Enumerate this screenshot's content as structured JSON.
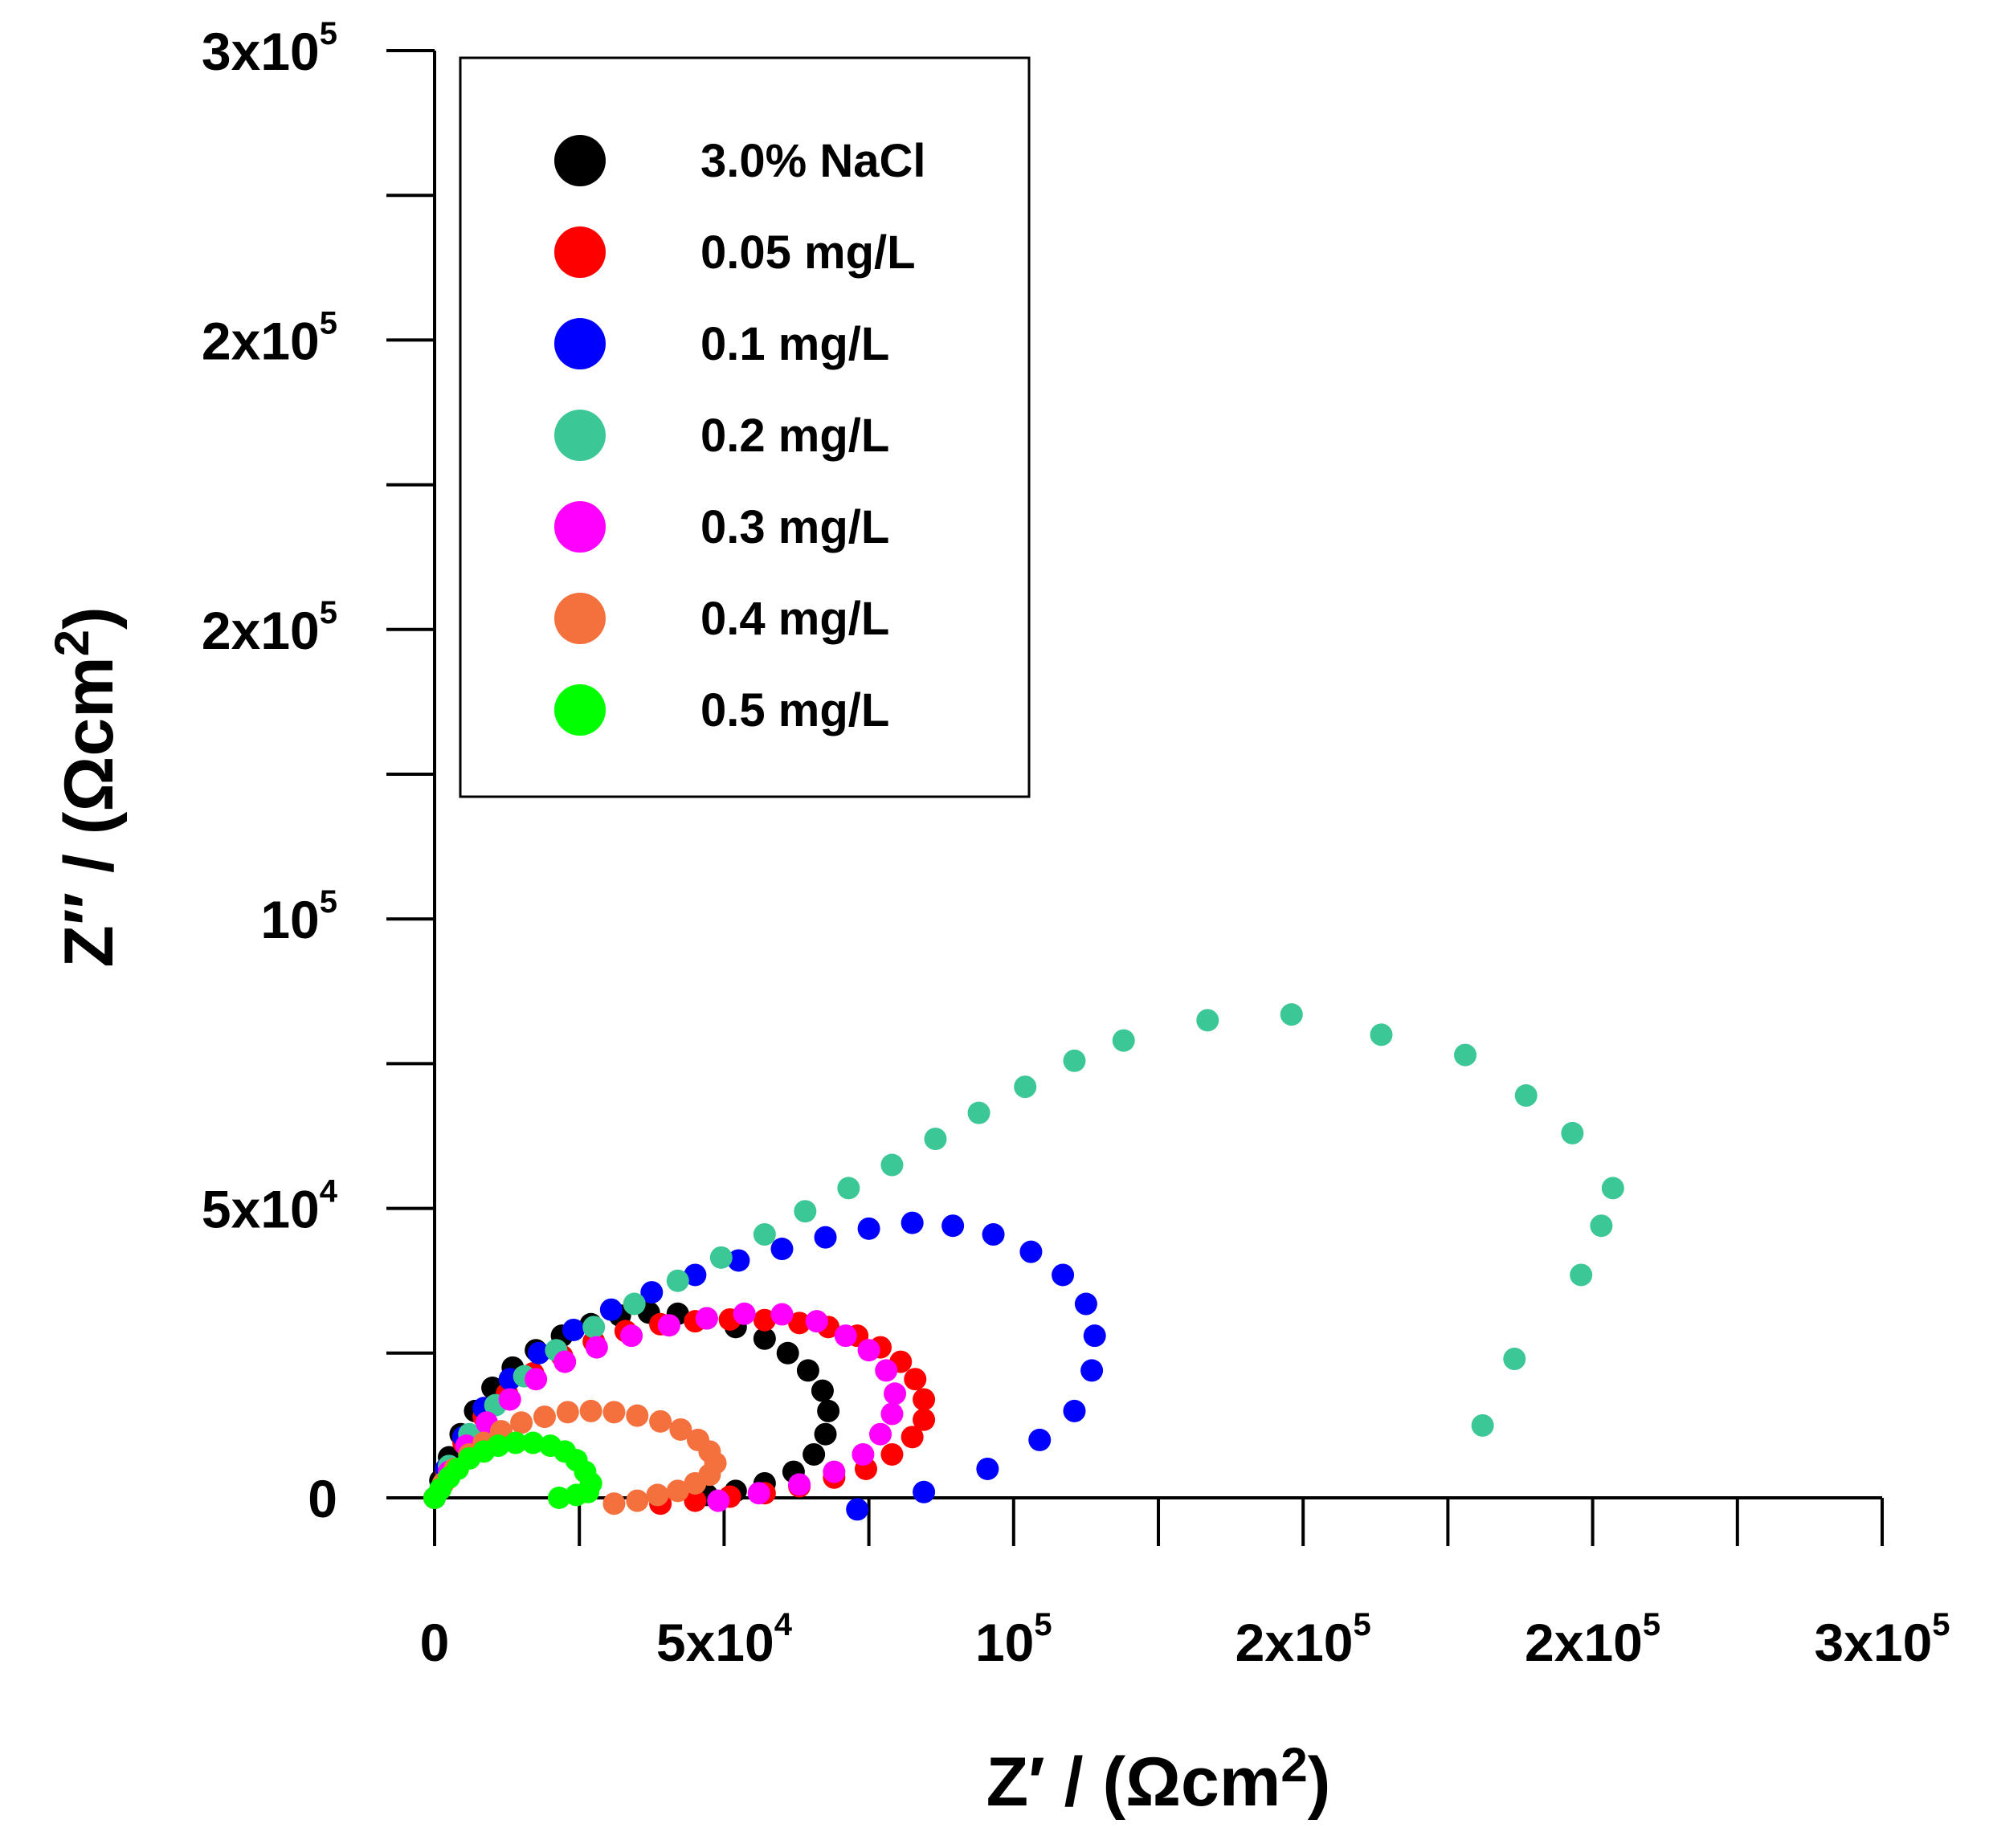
{
  "chart_data": {
    "type": "scatter",
    "title": "",
    "xlabel": "Z' / (Ωcm2)",
    "ylabel": "Z'' / (Ωcm2)",
    "xlabel_parts": {
      "main": "Z′ / (Ωcm",
      "sup": "2",
      "close": ")"
    },
    "ylabel_parts": {
      "main": "Z″ / (Ωcm",
      "sup": "2",
      "close": ")"
    },
    "xlim": [
      0,
      250000
    ],
    "ylim": [
      0,
      250000
    ],
    "x_ticks": [
      {
        "value": 0,
        "base": "0",
        "exp": ""
      },
      {
        "value": 50000,
        "base": "5x10",
        "exp": "4"
      },
      {
        "value": 100000,
        "base": "10",
        "exp": "5"
      },
      {
        "value": 150000,
        "base": "2x10",
        "exp": "5"
      },
      {
        "value": 200000,
        "base": "2x10",
        "exp": "5"
      },
      {
        "value": 250000,
        "base": "3x10",
        "exp": "5"
      }
    ],
    "y_ticks": [
      {
        "value": 0,
        "base": "0",
        "exp": ""
      },
      {
        "value": 50000,
        "base": "5x10",
        "exp": "4"
      },
      {
        "value": 100000,
        "base": "10",
        "exp": "5"
      },
      {
        "value": 150000,
        "base": "2x10",
        "exp": "5"
      },
      {
        "value": 200000,
        "base": "2x10",
        "exp": "5"
      },
      {
        "value": 250000,
        "base": "3x10",
        "exp": "5"
      }
    ],
    "legend_position": "top-left",
    "series": [
      {
        "name": "3.0% NaCl",
        "color": "#000000",
        "points": [
          [
            0,
            0
          ],
          [
            1000,
            3000
          ],
          [
            2500,
            7000
          ],
          [
            4500,
            11000
          ],
          [
            7000,
            15000
          ],
          [
            10000,
            19000
          ],
          [
            13500,
            22500
          ],
          [
            17500,
            25500
          ],
          [
            22000,
            28000
          ],
          [
            27000,
            30000
          ],
          [
            32000,
            31500
          ],
          [
            37000,
            32000
          ],
          [
            42000,
            31800
          ],
          [
            47000,
            31000
          ],
          [
            52000,
            29500
          ],
          [
            57000,
            27500
          ],
          [
            61000,
            25000
          ],
          [
            64500,
            22000
          ],
          [
            67000,
            18500
          ],
          [
            68000,
            15000
          ],
          [
            67500,
            11000
          ],
          [
            65500,
            7500
          ],
          [
            62000,
            4500
          ],
          [
            57000,
            2500
          ],
          [
            52000,
            1200
          ],
          [
            47000,
            500
          ]
        ]
      },
      {
        "name": "0.05 mg/L",
        "color": "#ff0000",
        "points": [
          [
            0,
            0
          ],
          [
            2000,
            4500
          ],
          [
            5000,
            9500
          ],
          [
            8500,
            14000
          ],
          [
            12500,
            18000
          ],
          [
            17000,
            21500
          ],
          [
            22000,
            24500
          ],
          [
            27500,
            27000
          ],
          [
            33000,
            28800
          ],
          [
            39000,
            30000
          ],
          [
            45000,
            30500
          ],
          [
            51000,
            30800
          ],
          [
            57000,
            30700
          ],
          [
            63000,
            30200
          ],
          [
            68000,
            29500
          ],
          [
            73000,
            28000
          ],
          [
            77000,
            26000
          ],
          [
            80500,
            23500
          ],
          [
            83000,
            20500
          ],
          [
            84500,
            17000
          ],
          [
            84500,
            13500
          ],
          [
            82500,
            10500
          ],
          [
            79000,
            7500
          ],
          [
            74500,
            5000
          ],
          [
            69000,
            3500
          ],
          [
            63000,
            2000
          ],
          [
            57000,
            800
          ],
          [
            51000,
            200
          ],
          [
            45000,
            -500
          ],
          [
            39000,
            -1000
          ]
        ]
      },
      {
        "name": "0.1 mg/L",
        "color": "#0000ff",
        "points": [
          [
            0,
            0
          ],
          [
            2000,
            5000
          ],
          [
            5000,
            10500
          ],
          [
            8500,
            15500
          ],
          [
            13000,
            20500
          ],
          [
            18000,
            25000
          ],
          [
            24000,
            29000
          ],
          [
            30500,
            32500
          ],
          [
            37500,
            35500
          ],
          [
            45000,
            38500
          ],
          [
            52500,
            41000
          ],
          [
            60000,
            43000
          ],
          [
            67500,
            45000
          ],
          [
            75000,
            46500
          ],
          [
            82500,
            47500
          ],
          [
            89500,
            47000
          ],
          [
            96500,
            45500
          ],
          [
            103000,
            42500
          ],
          [
            108500,
            38500
          ],
          [
            112500,
            33500
          ],
          [
            114000,
            28000
          ],
          [
            113500,
            22000
          ],
          [
            110500,
            15000
          ],
          [
            104500,
            10000
          ],
          [
            95500,
            5000
          ],
          [
            84500,
            1000
          ],
          [
            73000,
            -2000
          ]
        ]
      },
      {
        "name": "0.2 mg/L",
        "color": "#3cc896",
        "points": [
          [
            0,
            0
          ],
          [
            2500,
            5500
          ],
          [
            6000,
            11000
          ],
          [
            10500,
            16000
          ],
          [
            15500,
            21000
          ],
          [
            21000,
            25500
          ],
          [
            27500,
            29500
          ],
          [
            34500,
            33500
          ],
          [
            42000,
            37500
          ],
          [
            49500,
            41500
          ],
          [
            57000,
            45500
          ],
          [
            64000,
            49500
          ],
          [
            71500,
            53500
          ],
          [
            79000,
            57500
          ],
          [
            86500,
            62000
          ],
          [
            94000,
            66500
          ],
          [
            102000,
            71000
          ],
          [
            110500,
            75500
          ],
          [
            119000,
            79000
          ],
          [
            133500,
            82500
          ],
          [
            148000,
            83500
          ],
          [
            163500,
            80000
          ],
          [
            178000,
            76500
          ],
          [
            188500,
            69500
          ],
          [
            196500,
            63000
          ],
          [
            203500,
            53500
          ],
          [
            201500,
            47000
          ],
          [
            198000,
            38500
          ],
          [
            186500,
            24000
          ],
          [
            181000,
            12500
          ]
        ]
      },
      {
        "name": "0.3 mg/L",
        "color": "#ff00ff",
        "points": [
          [
            0,
            0
          ],
          [
            2500,
            4500
          ],
          [
            5500,
            9000
          ],
          [
            9000,
            13000
          ],
          [
            13000,
            17000
          ],
          [
            17500,
            20500
          ],
          [
            22500,
            23500
          ],
          [
            28000,
            26000
          ],
          [
            34000,
            28000
          ],
          [
            40500,
            29800
          ],
          [
            47000,
            31000
          ],
          [
            53500,
            31800
          ],
          [
            60000,
            31700
          ],
          [
            66000,
            30500
          ],
          [
            71000,
            28000
          ],
          [
            75000,
            25500
          ],
          [
            78000,
            22000
          ],
          [
            79500,
            18000
          ],
          [
            79000,
            14500
          ],
          [
            77000,
            11000
          ],
          [
            74000,
            7500
          ],
          [
            69000,
            4500
          ],
          [
            63000,
            2300
          ],
          [
            56000,
            800
          ],
          [
            49000,
            -500
          ]
        ]
      },
      {
        "name": "0.4 mg/L",
        "color": "#f4703c",
        "points": [
          [
            0,
            0
          ],
          [
            1500,
            2500
          ],
          [
            3500,
            5000
          ],
          [
            6000,
            7500
          ],
          [
            8500,
            9500
          ],
          [
            11500,
            11500
          ],
          [
            15000,
            13000
          ],
          [
            19000,
            14000
          ],
          [
            23000,
            14800
          ],
          [
            27000,
            15000
          ],
          [
            31000,
            14800
          ],
          [
            35000,
            14200
          ],
          [
            39000,
            13200
          ],
          [
            42500,
            11800
          ],
          [
            45500,
            10000
          ],
          [
            47500,
            8000
          ],
          [
            48500,
            6000
          ],
          [
            47500,
            4000
          ],
          [
            45000,
            2500
          ],
          [
            42000,
            1200
          ],
          [
            38500,
            500
          ],
          [
            35000,
            -500
          ],
          [
            31000,
            -1000
          ]
        ]
      },
      {
        "name": "0.5 mg/L",
        "color": "#00ff00",
        "points": [
          [
            0,
            0
          ],
          [
            1000,
            1500
          ],
          [
            2500,
            3500
          ],
          [
            4000,
            5000
          ],
          [
            6000,
            6800
          ],
          [
            8500,
            8000
          ],
          [
            11000,
            9000
          ],
          [
            14000,
            9500
          ],
          [
            17000,
            9500
          ],
          [
            20000,
            9000
          ],
          [
            22500,
            8000
          ],
          [
            24500,
            6500
          ],
          [
            26000,
            4500
          ],
          [
            27000,
            2500
          ],
          [
            26500,
            1000
          ],
          [
            24500,
            500
          ],
          [
            21500,
            0
          ]
        ]
      }
    ]
  }
}
